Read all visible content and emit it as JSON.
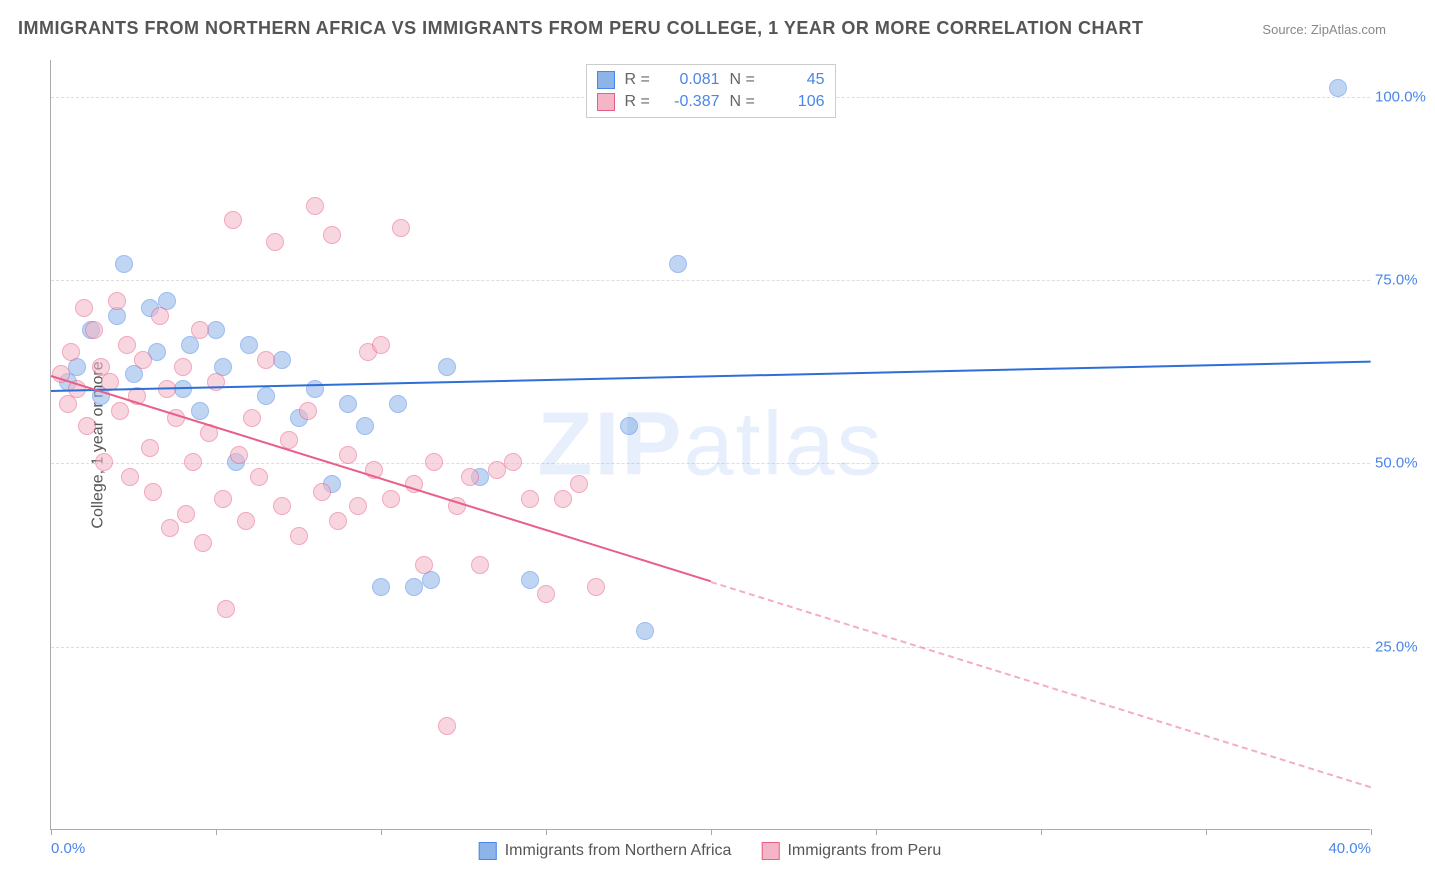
{
  "title": "IMMIGRANTS FROM NORTHERN AFRICA VS IMMIGRANTS FROM PERU COLLEGE, 1 YEAR OR MORE CORRELATION CHART",
  "source_label": "Source:",
  "source_value": "ZipAtlas.com",
  "ylabel": "College, 1 year or more",
  "watermark_bold": "ZIP",
  "watermark_rest": "atlas",
  "chart": {
    "type": "scatter",
    "xlim": [
      0,
      40
    ],
    "ylim": [
      0,
      105
    ],
    "yticks": [
      25,
      50,
      75,
      100
    ],
    "ytick_labels": [
      "25.0%",
      "50.0%",
      "75.0%",
      "100.0%"
    ],
    "xtick_positions": [
      0,
      5,
      10,
      15,
      20,
      25,
      30,
      35,
      40
    ],
    "xtick_labels": {
      "0": "0.0%",
      "40": "40.0%"
    },
    "grid_color": "#dddddd",
    "axis_color": "#aaaaaa",
    "background_color": "#ffffff",
    "marker_radius": 9,
    "marker_opacity": 0.55,
    "line_width": 2
  },
  "series": [
    {
      "name": "Immigrants from Northern Africa",
      "fill_color": "#8db4e8",
      "stroke_color": "#4a86e8",
      "line_color": "#2e6fd6",
      "R": "0.081",
      "N": "45",
      "trend": {
        "x1": 0,
        "y1": 60,
        "x2": 40,
        "y2": 64,
        "solid_until_x": 40
      },
      "points": [
        [
          0.5,
          61
        ],
        [
          0.8,
          63
        ],
        [
          1.2,
          68
        ],
        [
          1.5,
          59
        ],
        [
          2.0,
          70
        ],
        [
          2.2,
          77
        ],
        [
          2.5,
          62
        ],
        [
          3.0,
          71
        ],
        [
          3.2,
          65
        ],
        [
          3.5,
          72
        ],
        [
          4.0,
          60
        ],
        [
          4.2,
          66
        ],
        [
          4.5,
          57
        ],
        [
          5.0,
          68
        ],
        [
          5.2,
          63
        ],
        [
          5.6,
          50
        ],
        [
          6.0,
          66
        ],
        [
          6.5,
          59
        ],
        [
          7.0,
          64
        ],
        [
          7.5,
          56
        ],
        [
          8.0,
          60
        ],
        [
          8.5,
          47
        ],
        [
          9.0,
          58
        ],
        [
          9.5,
          55
        ],
        [
          10.0,
          33
        ],
        [
          10.5,
          58
        ],
        [
          11.0,
          33
        ],
        [
          11.5,
          34
        ],
        [
          12.0,
          63
        ],
        [
          13.0,
          48
        ],
        [
          14.5,
          34
        ],
        [
          17.5,
          55
        ],
        [
          18.0,
          27
        ],
        [
          19.0,
          77
        ],
        [
          39.0,
          101
        ]
      ]
    },
    {
      "name": "Immigrants from Peru",
      "fill_color": "#f4b6c7",
      "stroke_color": "#e85f88",
      "line_color": "#e85f88",
      "R": "-0.387",
      "N": "106",
      "trend": {
        "x1": 0,
        "y1": 62,
        "x2": 40,
        "y2": 6,
        "solid_until_x": 20
      },
      "points": [
        [
          0.3,
          62
        ],
        [
          0.5,
          58
        ],
        [
          0.6,
          65
        ],
        [
          0.8,
          60
        ],
        [
          1.0,
          71
        ],
        [
          1.1,
          55
        ],
        [
          1.3,
          68
        ],
        [
          1.5,
          63
        ],
        [
          1.6,
          50
        ],
        [
          1.8,
          61
        ],
        [
          2.0,
          72
        ],
        [
          2.1,
          57
        ],
        [
          2.3,
          66
        ],
        [
          2.4,
          48
        ],
        [
          2.6,
          59
        ],
        [
          2.8,
          64
        ],
        [
          3.0,
          52
        ],
        [
          3.1,
          46
        ],
        [
          3.3,
          70
        ],
        [
          3.5,
          60
        ],
        [
          3.6,
          41
        ],
        [
          3.8,
          56
        ],
        [
          4.0,
          63
        ],
        [
          4.1,
          43
        ],
        [
          4.3,
          50
        ],
        [
          4.5,
          68
        ],
        [
          4.6,
          39
        ],
        [
          4.8,
          54
        ],
        [
          5.0,
          61
        ],
        [
          5.2,
          45
        ],
        [
          5.3,
          30
        ],
        [
          5.5,
          83
        ],
        [
          5.7,
          51
        ],
        [
          5.9,
          42
        ],
        [
          6.1,
          56
        ],
        [
          6.3,
          48
        ],
        [
          6.5,
          64
        ],
        [
          6.8,
          80
        ],
        [
          7.0,
          44
        ],
        [
          7.2,
          53
        ],
        [
          7.5,
          40
        ],
        [
          7.8,
          57
        ],
        [
          8.0,
          85
        ],
        [
          8.2,
          46
        ],
        [
          8.5,
          81
        ],
        [
          8.7,
          42
        ],
        [
          9.0,
          51
        ],
        [
          9.3,
          44
        ],
        [
          9.6,
          65
        ],
        [
          9.8,
          49
        ],
        [
          10.0,
          66
        ],
        [
          10.3,
          45
        ],
        [
          10.6,
          82
        ],
        [
          11.0,
          47
        ],
        [
          11.3,
          36
        ],
        [
          11.6,
          50
        ],
        [
          12.0,
          14
        ],
        [
          12.3,
          44
        ],
        [
          12.7,
          48
        ],
        [
          13.0,
          36
        ],
        [
          13.5,
          49
        ],
        [
          14.0,
          50
        ],
        [
          14.5,
          45
        ],
        [
          15.0,
          32
        ],
        [
          15.5,
          45
        ],
        [
          16.0,
          47
        ],
        [
          16.5,
          33
        ]
      ]
    }
  ],
  "legend_top": {
    "r_label": "R =",
    "n_label": "N ="
  }
}
